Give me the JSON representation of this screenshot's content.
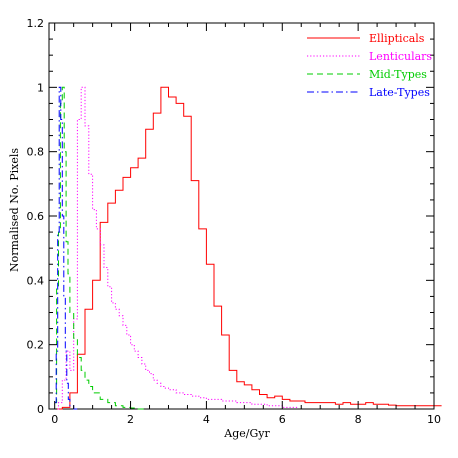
{
  "chart_data": {
    "type": "line",
    "step": true,
    "xlabel": "Age/Gyr",
    "ylabel": "Normalised No. Pixels",
    "xlim": [
      -0.15,
      10
    ],
    "ylim": [
      0,
      1.2
    ],
    "x_ticks": [
      0,
      2,
      4,
      6,
      8,
      10
    ],
    "y_ticks": [
      0,
      0.2,
      0.4,
      0.6,
      0.8,
      1,
      1.2
    ],
    "x_tick_labels": [
      "0",
      "2",
      "4",
      "6",
      "8",
      "10"
    ],
    "y_tick_labels": [
      "0",
      "0.2",
      "0.4",
      "0.6",
      "0.8",
      "1",
      "1.2"
    ],
    "legend_position": "top-right",
    "series": [
      {
        "name": "Ellipticals",
        "color": "#ff0000",
        "dash": "solid",
        "x": [
          0.0,
          0.2,
          0.4,
          0.6,
          0.8,
          1.0,
          1.2,
          1.4,
          1.6,
          1.8,
          2.0,
          2.2,
          2.4,
          2.6,
          2.8,
          3.0,
          3.2,
          3.4,
          3.6,
          3.8,
          4.0,
          4.2,
          4.4,
          4.6,
          4.8,
          5.0,
          5.2,
          5.4,
          5.6,
          5.8,
          6.0,
          6.2,
          6.4,
          6.6,
          6.8,
          7.0,
          7.2,
          7.4,
          7.6,
          7.8,
          8.0,
          8.2,
          8.4,
          8.6,
          8.8,
          9.0,
          9.2,
          9.4,
          9.6,
          9.8,
          10.0
        ],
        "values": [
          0.0,
          0.005,
          0.05,
          0.17,
          0.31,
          0.4,
          0.58,
          0.64,
          0.68,
          0.72,
          0.75,
          0.78,
          0.87,
          0.92,
          1.0,
          0.97,
          0.95,
          0.91,
          0.71,
          0.56,
          0.45,
          0.32,
          0.23,
          0.12,
          0.085,
          0.075,
          0.06,
          0.045,
          0.035,
          0.04,
          0.03,
          0.025,
          0.025,
          0.02,
          0.02,
          0.02,
          0.02,
          0.015,
          0.02,
          0.015,
          0.015,
          0.02,
          0.015,
          0.015,
          0.012,
          0.01,
          0.01,
          0.01,
          0.01,
          0.01,
          0.01
        ]
      },
      {
        "name": "Lenticulars",
        "color": "#ff00ff",
        "dash": "dotted",
        "x": [
          0.0,
          0.1,
          0.2,
          0.3,
          0.4,
          0.5,
          0.6,
          0.7,
          0.8,
          0.9,
          1.0,
          1.1,
          1.2,
          1.3,
          1.4,
          1.5,
          1.6,
          1.7,
          1.8,
          1.9,
          2.0,
          2.1,
          2.2,
          2.3,
          2.4,
          2.5,
          2.6,
          2.7,
          2.8,
          2.9,
          3.0,
          3.2,
          3.4,
          3.6,
          3.8,
          4.0,
          4.4,
          4.8,
          5.2,
          5.6,
          6.0
        ],
        "values": [
          0.0,
          0.02,
          0.09,
          0.18,
          0.12,
          0.28,
          0.9,
          1.0,
          0.88,
          0.73,
          0.62,
          0.56,
          0.51,
          0.44,
          0.38,
          0.33,
          0.31,
          0.29,
          0.26,
          0.23,
          0.2,
          0.18,
          0.16,
          0.14,
          0.12,
          0.11,
          0.09,
          0.08,
          0.07,
          0.065,
          0.06,
          0.05,
          0.045,
          0.04,
          0.035,
          0.03,
          0.025,
          0.02,
          0.015,
          0.01,
          0.005
        ]
      },
      {
        "name": "Mid-Types",
        "color": "#00cc00",
        "dash": "dashed",
        "x": [
          0.0,
          0.05,
          0.1,
          0.15,
          0.2,
          0.25,
          0.3,
          0.35,
          0.4,
          0.5,
          0.6,
          0.7,
          0.8,
          0.9,
          1.0,
          1.2,
          1.4,
          1.6,
          1.8,
          2.0,
          2.2
        ],
        "values": [
          0.02,
          0.38,
          0.55,
          0.95,
          1.0,
          0.8,
          0.52,
          0.42,
          0.3,
          0.22,
          0.16,
          0.12,
          0.09,
          0.07,
          0.05,
          0.03,
          0.02,
          0.01,
          0.005,
          0.003,
          0.0
        ]
      },
      {
        "name": "Late-Types",
        "color": "#0000ff",
        "dash": "dashdot",
        "x": [
          0.0,
          0.04,
          0.08,
          0.12,
          0.16,
          0.2,
          0.24,
          0.28,
          0.32,
          0.36,
          0.4,
          0.5
        ],
        "values": [
          0.02,
          0.18,
          0.55,
          1.0,
          0.9,
          0.6,
          0.35,
          0.18,
          0.08,
          0.03,
          0.01,
          0.0
        ]
      }
    ]
  }
}
